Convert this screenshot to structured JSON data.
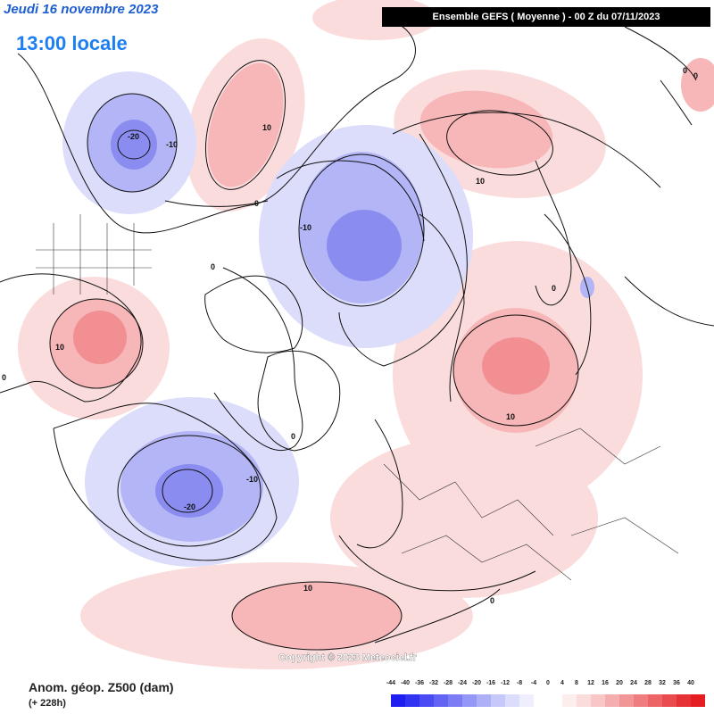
{
  "header": {
    "date": "Jeudi 16 novembre 2023",
    "local_time": "13:00 locale",
    "model_banner": "Ensemble GEFS  ( Moyenne )  - 00 Z du 07/11/2023"
  },
  "map": {
    "copyright": "Copyright © 2023 Meteociel.fr",
    "contour_labels": {
      "alaska_low": "-20",
      "alaska_ring": "-10",
      "northpac_high": "10",
      "arctic_low": "-10",
      "siberia_high": "10",
      "siberia_zero": "0",
      "russia_high": "10",
      "russia_zero": "0",
      "usa_high": "10",
      "usa_zero": "0",
      "atlantic_low": "-20",
      "atlantic_ring": "-10",
      "greenland_zero": "0",
      "ne_pac_zero": "0",
      "sahara_high": "10",
      "africa_zero": "0",
      "far_east_zero": "0",
      "west_zero": "0"
    },
    "palette": {
      "neg_20": "#8a8cf0",
      "neg_10": "#b3b5f6",
      "neg_5": "#dcdcfb",
      "pos_5": "#fbdcdc",
      "pos_10": "#f7b7b8",
      "pos_20": "#f28f92"
    }
  },
  "footer": {
    "variable": "Anom. géop. Z500 (dam)",
    "lead_time": "(+ 228h)"
  },
  "legend": {
    "ticks": [
      "-44",
      "-40",
      "-36",
      "-32",
      "-28",
      "-24",
      "-20",
      "-16",
      "-12",
      "-8",
      "-4",
      "0",
      "4",
      "8",
      "12",
      "16",
      "20",
      "24",
      "28",
      "32",
      "36",
      "40"
    ],
    "colors": [
      "#1e1ef0",
      "#3232f2",
      "#4b4bf3",
      "#6464f4",
      "#7c7df5",
      "#9597f6",
      "#aeb0f7",
      "#c6c8f9",
      "#dcddfb",
      "#eeeefd",
      "#ffffff",
      "#ffffff",
      "#fdeeee",
      "#fbdcdc",
      "#f8c6c7",
      "#f5aeb0",
      "#f29597",
      "#ef7c7e",
      "#ec6466",
      "#e94b4e",
      "#e63236",
      "#e41e22"
    ]
  }
}
